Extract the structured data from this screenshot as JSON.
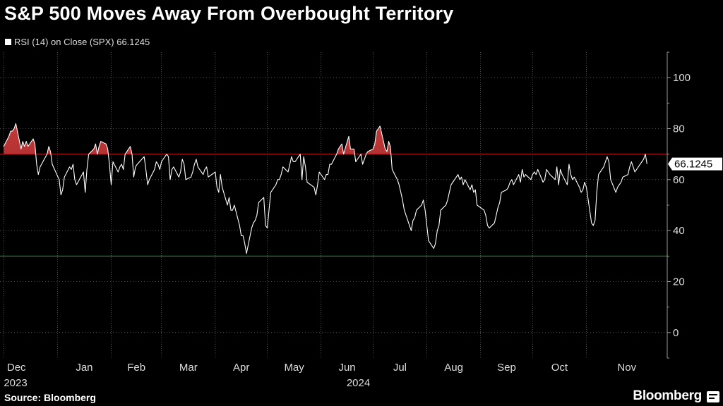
{
  "title": "S&P 500 Moves Away From Overbought Territory",
  "legend": {
    "label": "RSI (14)  on Close (SPX) 66.1245",
    "color": "#ffffff"
  },
  "source": "Source: Bloomberg",
  "brand": "Bloomberg",
  "colors": {
    "line": "#ffffff",
    "overbought_line": "#b3131a",
    "oversold_line": "#1e8f1e",
    "overbought_fill": "#8b1a1a",
    "grid": "#6a6a6a"
  },
  "chart_data": {
    "type": "line",
    "title": "S&P 500 Moves Away From Overbought Territory",
    "series": [
      {
        "name": "RSI (14)  on Close (SPX)",
        "last_value_label": "66.1245",
        "x": [
          "2023-12-01",
          "2023-12-04",
          "2023-12-05",
          "2023-12-06",
          "2023-12-07",
          "2023-12-08",
          "2023-12-11",
          "2023-12-12",
          "2023-12-13",
          "2023-12-14",
          "2023-12-15",
          "2023-12-18",
          "2023-12-19",
          "2023-12-20",
          "2023-12-21",
          "2023-12-22",
          "2023-12-26",
          "2023-12-27",
          "2023-12-28",
          "2023-12-29",
          "2024-01-02",
          "2024-01-03",
          "2024-01-04",
          "2024-01-05",
          "2024-01-08",
          "2024-01-09",
          "2024-01-10",
          "2024-01-11",
          "2024-01-12",
          "2024-01-16",
          "2024-01-17",
          "2024-01-18",
          "2024-01-19",
          "2024-01-22",
          "2024-01-23",
          "2024-01-24",
          "2024-01-25",
          "2024-01-26",
          "2024-01-29",
          "2024-01-30",
          "2024-01-31",
          "2024-02-01",
          "2024-02-02",
          "2024-02-05",
          "2024-02-06",
          "2024-02-07",
          "2024-02-08",
          "2024-02-09",
          "2024-02-12",
          "2024-02-13",
          "2024-02-14",
          "2024-02-15",
          "2024-02-16",
          "2024-02-20",
          "2024-02-21",
          "2024-02-22",
          "2024-02-23",
          "2024-02-26",
          "2024-02-27",
          "2024-02-28",
          "2024-02-29",
          "2024-03-01",
          "2024-03-04",
          "2024-03-05",
          "2024-03-06",
          "2024-03-07",
          "2024-03-08",
          "2024-03-11",
          "2024-03-12",
          "2024-03-13",
          "2024-03-14",
          "2024-03-15",
          "2024-03-18",
          "2024-03-19",
          "2024-03-20",
          "2024-03-21",
          "2024-03-22",
          "2024-03-25",
          "2024-03-26",
          "2024-03-27",
          "2024-03-28",
          "2024-04-01",
          "2024-04-02",
          "2024-04-03",
          "2024-04-04",
          "2024-04-05",
          "2024-04-08",
          "2024-04-09",
          "2024-04-10",
          "2024-04-11",
          "2024-04-12",
          "2024-04-15",
          "2024-04-16",
          "2024-04-17",
          "2024-04-18",
          "2024-04-19",
          "2024-04-22",
          "2024-04-23",
          "2024-04-24",
          "2024-04-25",
          "2024-04-26",
          "2024-04-29",
          "2024-04-30",
          "2024-05-01",
          "2024-05-02",
          "2024-05-03",
          "2024-05-06",
          "2024-05-07",
          "2024-05-08",
          "2024-05-09",
          "2024-05-10",
          "2024-05-13",
          "2024-05-14",
          "2024-05-15",
          "2024-05-16",
          "2024-05-17",
          "2024-05-20",
          "2024-05-21",
          "2024-05-22",
          "2024-05-23",
          "2024-05-24",
          "2024-05-28",
          "2024-05-29",
          "2024-05-30",
          "2024-05-31",
          "2024-06-03",
          "2024-06-04",
          "2024-06-05",
          "2024-06-06",
          "2024-06-07",
          "2024-06-10",
          "2024-06-11",
          "2024-06-12",
          "2024-06-13",
          "2024-06-14",
          "2024-06-17",
          "2024-06-18",
          "2024-06-20",
          "2024-06-21",
          "2024-06-24",
          "2024-06-25",
          "2024-06-26",
          "2024-06-27",
          "2024-06-28",
          "2024-07-01",
          "2024-07-02",
          "2024-07-03",
          "2024-07-05",
          "2024-07-08",
          "2024-07-09",
          "2024-07-10",
          "2024-07-11",
          "2024-07-12",
          "2024-07-15",
          "2024-07-16",
          "2024-07-17",
          "2024-07-18",
          "2024-07-19",
          "2024-07-22",
          "2024-07-23",
          "2024-07-24",
          "2024-07-25",
          "2024-07-26",
          "2024-07-29",
          "2024-07-30",
          "2024-07-31",
          "2024-08-01",
          "2024-08-02",
          "2024-08-05",
          "2024-08-06",
          "2024-08-07",
          "2024-08-08",
          "2024-08-09",
          "2024-08-12",
          "2024-08-13",
          "2024-08-14",
          "2024-08-15",
          "2024-08-16",
          "2024-08-19",
          "2024-08-20",
          "2024-08-21",
          "2024-08-22",
          "2024-08-23",
          "2024-08-26",
          "2024-08-27",
          "2024-08-28",
          "2024-08-29",
          "2024-08-30",
          "2024-09-03",
          "2024-09-04",
          "2024-09-05",
          "2024-09-06",
          "2024-09-09",
          "2024-09-10",
          "2024-09-11",
          "2024-09-12",
          "2024-09-13",
          "2024-09-16",
          "2024-09-17",
          "2024-09-18",
          "2024-09-19",
          "2024-09-20",
          "2024-09-23",
          "2024-09-24",
          "2024-09-25",
          "2024-09-26",
          "2024-09-27",
          "2024-09-30",
          "2024-10-01",
          "2024-10-02",
          "2024-10-03",
          "2024-10-04",
          "2024-10-07",
          "2024-10-08",
          "2024-10-09",
          "2024-10-10",
          "2024-10-11",
          "2024-10-14",
          "2024-10-15",
          "2024-10-16",
          "2024-10-17",
          "2024-10-18",
          "2024-10-21",
          "2024-10-22",
          "2024-10-23",
          "2024-10-24",
          "2024-10-25",
          "2024-10-28",
          "2024-10-29",
          "2024-10-30",
          "2024-10-31",
          "2024-11-01",
          "2024-11-04",
          "2024-11-05",
          "2024-11-06",
          "2024-11-07",
          "2024-11-08",
          "2024-11-11",
          "2024-11-12",
          "2024-11-13",
          "2024-11-14",
          "2024-11-15",
          "2024-11-18",
          "2024-11-19",
          "2024-11-20",
          "2024-11-21",
          "2024-11-22",
          "2024-11-25",
          "2024-11-26",
          "2024-11-27",
          "2024-11-29",
          "2024-12-02",
          "2024-12-03",
          "2024-12-04",
          "2024-12-05",
          "2024-12-06"
        ],
        "values": [
          73,
          77,
          79,
          79,
          80,
          82,
          72,
          75,
          73,
          75,
          73,
          76,
          74,
          66,
          62,
          65,
          70,
          73,
          71,
          66,
          60,
          54,
          56,
          61,
          65,
          64,
          66,
          60,
          58,
          63,
          55,
          64,
          70,
          72,
          74,
          70,
          73,
          75,
          74,
          72,
          66,
          58,
          67,
          63,
          65,
          66,
          64,
          70,
          73,
          70,
          61,
          65,
          66,
          69,
          64,
          58,
          60,
          64,
          67,
          66,
          64,
          67,
          70,
          69,
          60,
          64,
          65,
          61,
          63,
          68,
          66,
          60,
          61,
          63,
          66,
          68,
          65,
          62,
          64,
          65,
          61,
          63,
          57,
          55,
          62,
          57,
          50,
          53,
          48,
          48,
          50,
          42,
          38,
          38,
          35,
          31,
          41,
          43,
          44,
          46,
          51,
          53,
          42,
          41,
          48,
          55,
          58,
          60,
          60,
          62,
          65,
          63,
          66,
          69,
          67,
          67,
          70,
          60,
          69,
          65,
          59,
          57,
          54,
          58,
          63,
          60,
          62,
          62,
          66,
          66,
          70,
          72,
          73,
          74,
          70,
          77,
          72,
          72,
          67,
          70,
          66,
          68,
          70,
          71,
          72,
          74,
          79,
          81,
          72,
          71,
          75,
          73,
          64,
          60,
          58,
          55,
          52,
          48,
          42,
          40,
          44,
          45,
          48,
          50,
          52,
          48,
          42,
          36,
          33,
          35,
          40,
          42,
          48,
          50,
          52,
          55,
          58,
          59,
          62,
          60,
          61,
          58,
          60,
          56,
          58,
          55,
          56,
          50,
          48,
          46,
          42,
          41,
          43,
          46,
          49,
          51,
          55,
          56,
          57,
          59,
          60,
          58,
          62,
          59,
          64,
          61,
          62,
          60,
          62,
          63,
          62,
          64,
          59,
          60,
          64,
          63,
          62,
          60,
          65,
          58,
          64,
          62,
          58,
          66,
          62,
          60,
          61,
          57,
          55,
          56,
          59,
          57,
          43,
          42,
          44,
          55,
          62,
          65,
          67,
          69,
          67,
          60,
          55,
          57,
          58,
          59,
          61,
          62,
          65,
          67,
          63,
          66,
          67,
          68,
          70,
          66.1245
        ],
        "color": "#ffffff"
      }
    ],
    "reference_lines": [
      {
        "y": 70,
        "color": "#b3131a"
      },
      {
        "y": 30,
        "color": "#1e8f1e"
      }
    ],
    "ylim": [
      -10,
      110
    ],
    "y_ticks": [
      0,
      20,
      40,
      60,
      80,
      100
    ],
    "x_ticks": [
      {
        "date": "2023-12-01",
        "label": "Dec",
        "year": "2023"
      },
      {
        "date": "2024-01-01",
        "label": "Jan",
        "year": ""
      },
      {
        "date": "2024-02-01",
        "label": "Feb",
        "year": ""
      },
      {
        "date": "2024-03-01",
        "label": "Mar",
        "year": ""
      },
      {
        "date": "2024-04-01",
        "label": "Apr",
        "year": ""
      },
      {
        "date": "2024-05-01",
        "label": "May",
        "year": ""
      },
      {
        "date": "2024-06-01",
        "label": "Jun",
        "year": "2024"
      },
      {
        "date": "2024-07-01",
        "label": "Jul",
        "year": ""
      },
      {
        "date": "2024-08-01",
        "label": "Aug",
        "year": ""
      },
      {
        "date": "2024-09-01",
        "label": "Sep",
        "year": ""
      },
      {
        "date": "2024-10-01",
        "label": "Oct",
        "year": ""
      },
      {
        "date": "2024-11-01",
        "label": "Nov",
        "year": ""
      }
    ],
    "overbought_shading": "above-70"
  }
}
